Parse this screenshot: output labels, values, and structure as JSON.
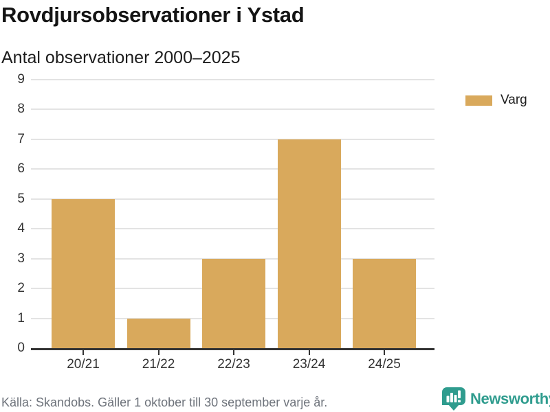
{
  "header": {
    "title": "Rovdjursobservationer i Ystad",
    "subtitle": "Antal observationer 2000–2025"
  },
  "legend": {
    "items": [
      {
        "label": "Varg",
        "color": "#d9a95c"
      }
    ]
  },
  "footer": {
    "source_note": "Källa: Skandobs. Gäller 1 oktober till 30 september varje år."
  },
  "branding": {
    "wordmark": "Newsworthy",
    "icon": "newsworthy-chart-bubble-icon",
    "color": "#2f9c8e"
  },
  "chart_data": {
    "type": "bar",
    "title": "Rovdjursobservationer i Ystad",
    "subtitle": "Antal observationer 2000–2025",
    "categories": [
      "20/21",
      "21/22",
      "22/23",
      "23/24",
      "24/25"
    ],
    "series": [
      {
        "name": "Varg",
        "values": [
          5,
          1,
          3,
          7,
          3
        ],
        "color": "#d9a95c"
      }
    ],
    "ylim": [
      0,
      9
    ],
    "yticks": [
      0,
      1,
      2,
      3,
      4,
      5,
      6,
      7,
      8,
      9
    ],
    "xlabel": "",
    "ylabel": "",
    "grid": "horizontal",
    "gridline_color": "#e3e3e3",
    "axis_color": "#333333",
    "legend_position": "right-top"
  }
}
